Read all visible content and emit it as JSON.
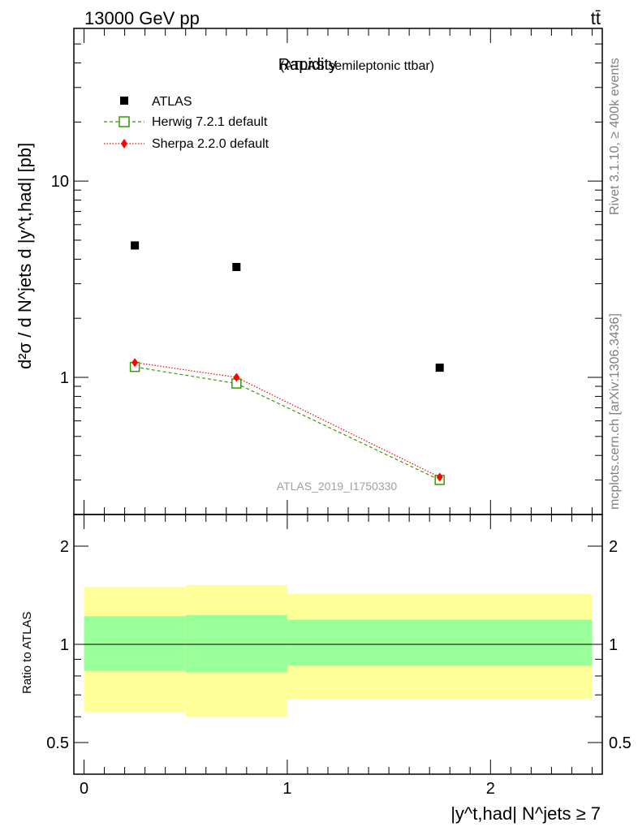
{
  "header": {
    "energy": "13000 GeV pp",
    "process": "tt̄"
  },
  "side_labels": {
    "rivet": "Rivet 3.1.10, ≥ 400k events",
    "source": "mcplots.cern.ch [arXiv:1306.3436]"
  },
  "chart_data": [
    {
      "type": "scatter",
      "title": "Rapidity",
      "subtitle": "(ATLAS semileptonic ttbar)",
      "analysis_id": "ATLAS_2019_I1750330",
      "ylabel": "d²σ / d N^jets d |y^t,had| [pb]",
      "yscale": "log",
      "ylim": [
        0.2,
        60
      ],
      "xlim": [
        -0.05,
        2.55
      ],
      "ytick_labels": [
        "1",
        "10"
      ],
      "legend_position": "top-left",
      "legend": [
        {
          "label": "ATLAS",
          "marker": "square-filled",
          "color": "#000000"
        },
        {
          "label": "Herwig 7.2.1 default",
          "marker": "square-open",
          "color": "#339900",
          "line": "dashed"
        },
        {
          "label": "Sherpa 2.2.0 default",
          "marker": "diamond",
          "color": "#ff0000",
          "line": "dotted"
        }
      ],
      "x": [
        0.25,
        0.75,
        1.75
      ],
      "series": [
        {
          "name": "ATLAS",
          "values": [
            4.7,
            3.65,
            1.12
          ]
        },
        {
          "name": "Herwig 7.2.1 default",
          "values": [
            1.13,
            0.93,
            0.3
          ]
        },
        {
          "name": "Sherpa 2.2.0 default",
          "values": [
            1.19,
            1.0,
            0.31
          ]
        }
      ]
    },
    {
      "type": "area",
      "ylabel": "Ratio to ATLAS",
      "xlabel": "|y^t,had| N^jets ≥ 7",
      "xlim": [
        -0.05,
        2.55
      ],
      "ylim": [
        0.4,
        2.5
      ],
      "xtick_labels": [
        "0",
        "1",
        "2"
      ],
      "ytick_labels": [
        "0.5",
        "1",
        "2"
      ],
      "reference_line": 1,
      "bins": [
        {
          "x_low": 0.0,
          "x_high": 0.5,
          "outer_band": [
            0.62,
            1.5
          ],
          "inner_band": [
            0.83,
            1.22
          ]
        },
        {
          "x_low": 0.5,
          "x_high": 1.0,
          "outer_band": [
            0.6,
            1.52
          ],
          "inner_band": [
            0.82,
            1.23
          ]
        },
        {
          "x_low": 1.0,
          "x_high": 2.5,
          "outer_band": [
            0.68,
            1.43
          ],
          "inner_band": [
            0.86,
            1.19
          ]
        }
      ],
      "band_colors": {
        "outer": "#ffff99",
        "inner": "#99ff99"
      }
    }
  ]
}
